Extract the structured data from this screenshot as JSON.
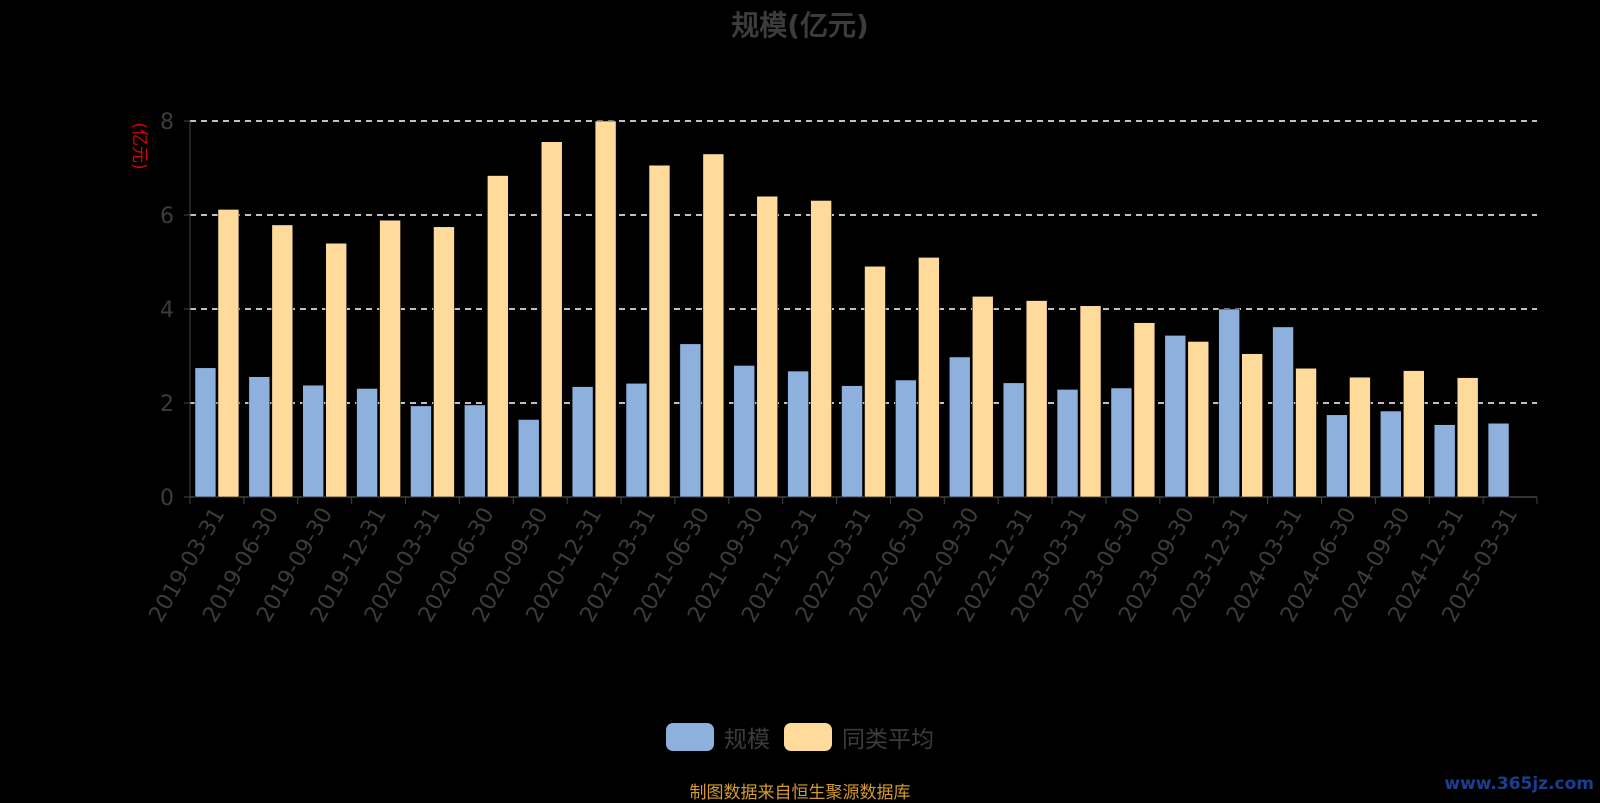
{
  "chart_data": {
    "type": "bar",
    "title": "规模(亿元)",
    "ylabel": "(亿元)",
    "xlabel": "",
    "ylim": [
      0,
      8
    ],
    "yticks": [
      0,
      2,
      4,
      6,
      8
    ],
    "grid": true,
    "legend_position": "bottom",
    "categories": [
      "2019-03-31",
      "2019-06-30",
      "2019-09-30",
      "2019-12-31",
      "2020-03-31",
      "2020-06-30",
      "2020-09-30",
      "2020-12-31",
      "2021-03-31",
      "2021-06-30",
      "2021-09-30",
      "2021-12-31",
      "2022-03-31",
      "2022-06-30",
      "2022-09-30",
      "2022-12-31",
      "2023-03-31",
      "2023-06-30",
      "2023-09-30",
      "2023-12-31",
      "2024-03-31",
      "2024-06-30",
      "2024-09-30",
      "2024-12-31",
      "2025-03-31"
    ],
    "series": [
      {
        "name": "规模",
        "color": "#8eb0dd",
        "values": [
          2.75,
          2.56,
          2.38,
          2.31,
          1.94,
          1.96,
          1.65,
          2.35,
          2.42,
          3.26,
          2.8,
          2.68,
          2.37,
          2.49,
          2.98,
          2.43,
          2.29,
          2.32,
          3.44,
          4.0,
          3.62,
          1.75,
          1.83,
          1.54,
          1.57
        ]
      },
      {
        "name": "同类平均",
        "color": "#ffdb9b",
        "values": [
          6.12,
          5.79,
          5.4,
          5.89,
          5.75,
          6.84,
          7.56,
          8.0,
          7.06,
          7.3,
          6.4,
          6.31,
          4.91,
          5.1,
          4.27,
          4.18,
          4.07,
          3.71,
          3.31,
          3.05,
          2.74,
          2.55,
          2.69,
          2.54,
          null
        ]
      }
    ]
  },
  "source_text": "制图数据来自恒生聚源数据库",
  "watermark_text": "www.365jz.com"
}
